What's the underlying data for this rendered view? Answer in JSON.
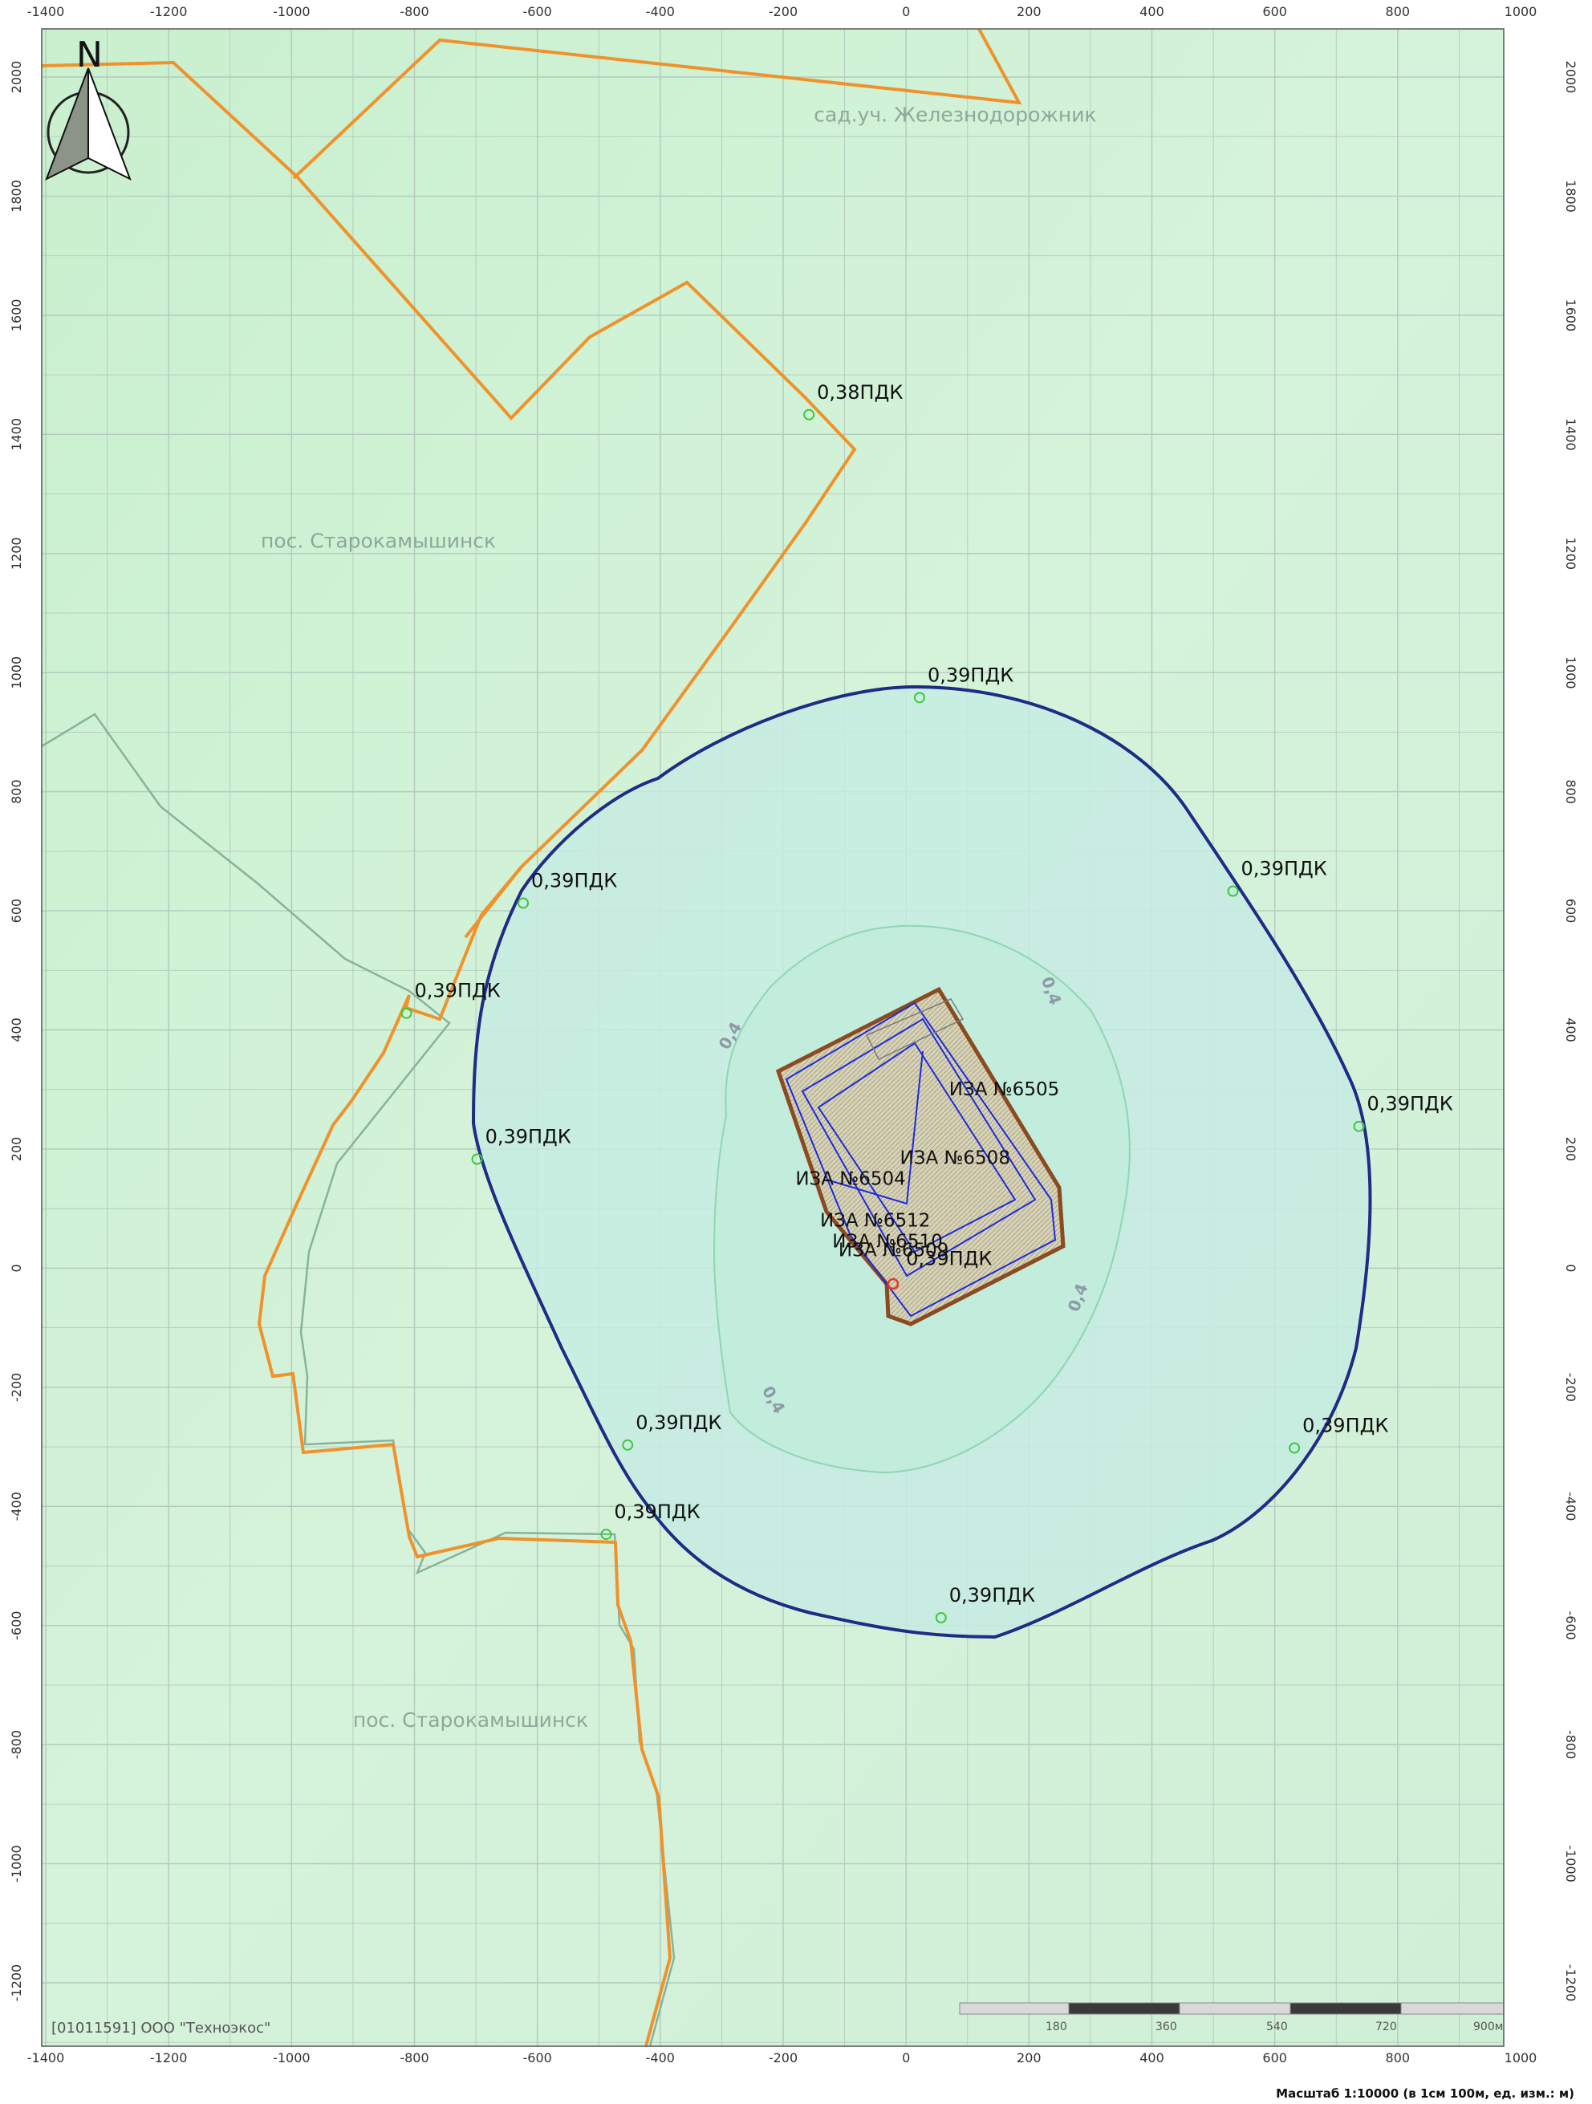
{
  "axes": {
    "x_ticks": [
      "-1400",
      "-1200",
      "-1000",
      "-800",
      "-600",
      "-400",
      "-200",
      "0",
      "200",
      "400",
      "600",
      "800",
      "1000"
    ],
    "y_ticks": [
      "2000",
      "1800",
      "1600",
      "1400",
      "1200",
      "1000",
      "800",
      "600",
      "400",
      "200",
      "0",
      "-200",
      "-400",
      "-600",
      "-800",
      "-1000",
      "-1200"
    ],
    "x_range": [
      -1400,
      1000
    ],
    "y_range": [
      -1250,
      2060
    ],
    "grid_step": 100
  },
  "north_arrow": {
    "letter": "N"
  },
  "places": [
    {
      "name": "сад.уч. Железнодорожник",
      "x": -150,
      "y": 1925
    },
    {
      "name": "пос. Старокамышинск",
      "x": -1050,
      "y": 1210
    },
    {
      "name": "пос. Старокамышинск",
      "x": -900,
      "y": -770
    }
  ],
  "contour_labels": [
    {
      "text": "0,38ПДК",
      "x": -145,
      "y": 1460
    },
    {
      "text": "0,39ПДК",
      "x": 35,
      "y": 985
    },
    {
      "text": "0,39ПДК",
      "x": -610,
      "y": 640
    },
    {
      "text": "0,39ПДК",
      "x": 545,
      "y": 660
    },
    {
      "text": "0,39ПДК",
      "x": -800,
      "y": 455
    },
    {
      "text": "0,39ПДК",
      "x": 750,
      "y": 265
    },
    {
      "text": "0,39ПДК",
      "x": -685,
      "y": 210
    },
    {
      "text": "0,39ПДК",
      "x": -440,
      "y": -270
    },
    {
      "text": "0,39ПДК",
      "x": 645,
      "y": -275
    },
    {
      "text": "0,39ПДК",
      "x": -475,
      "y": -420
    },
    {
      "text": "0,39ПДК",
      "x": 70,
      "y": -560
    },
    {
      "text": "0,39ПДК",
      "x": 0,
      "y": 5
    }
  ],
  "sources": [
    {
      "text": "ИЗА №6505",
      "x": 70,
      "y": 290
    },
    {
      "text": "ИЗА №6508",
      "x": -10,
      "y": 175
    },
    {
      "text": "ИЗА №6504",
      "x": -180,
      "y": 140
    },
    {
      "text": "ИЗА №6512",
      "x": -140,
      "y": 70
    },
    {
      "text": "ИЗА №6510",
      "x": -120,
      "y": 35
    },
    {
      "text": "ИЗА №6509",
      "x": -110,
      "y": 20
    }
  ],
  "iso_labels": [
    {
      "text": "0,4",
      "x": 220,
      "y": 485
    },
    {
      "text": "0,4",
      "x": -290,
      "y": 365
    },
    {
      "text": "0,4",
      "x": 280,
      "y": -75
    },
    {
      "text": "0,4",
      "x": -235,
      "y": -205
    }
  ],
  "company": "[01011591] ООО \"Техноэкос\"",
  "scale_bar": {
    "labels": [
      "180",
      "360",
      "540",
      "720",
      "900м"
    ],
    "caption": "Масштаб 1:10000 (в 1см 100м, ед. изм.: м)"
  },
  "colors": {
    "background": "#d4f2d8",
    "grid": "#b3c9bd",
    "orange_boundary": "#f0922b",
    "contour_039": "#1f2b85",
    "contour_04": "#8fd6b4",
    "site_outline": "#8b4a20",
    "source_lines": "#1c2bdc",
    "green_line": "#86b39b"
  }
}
